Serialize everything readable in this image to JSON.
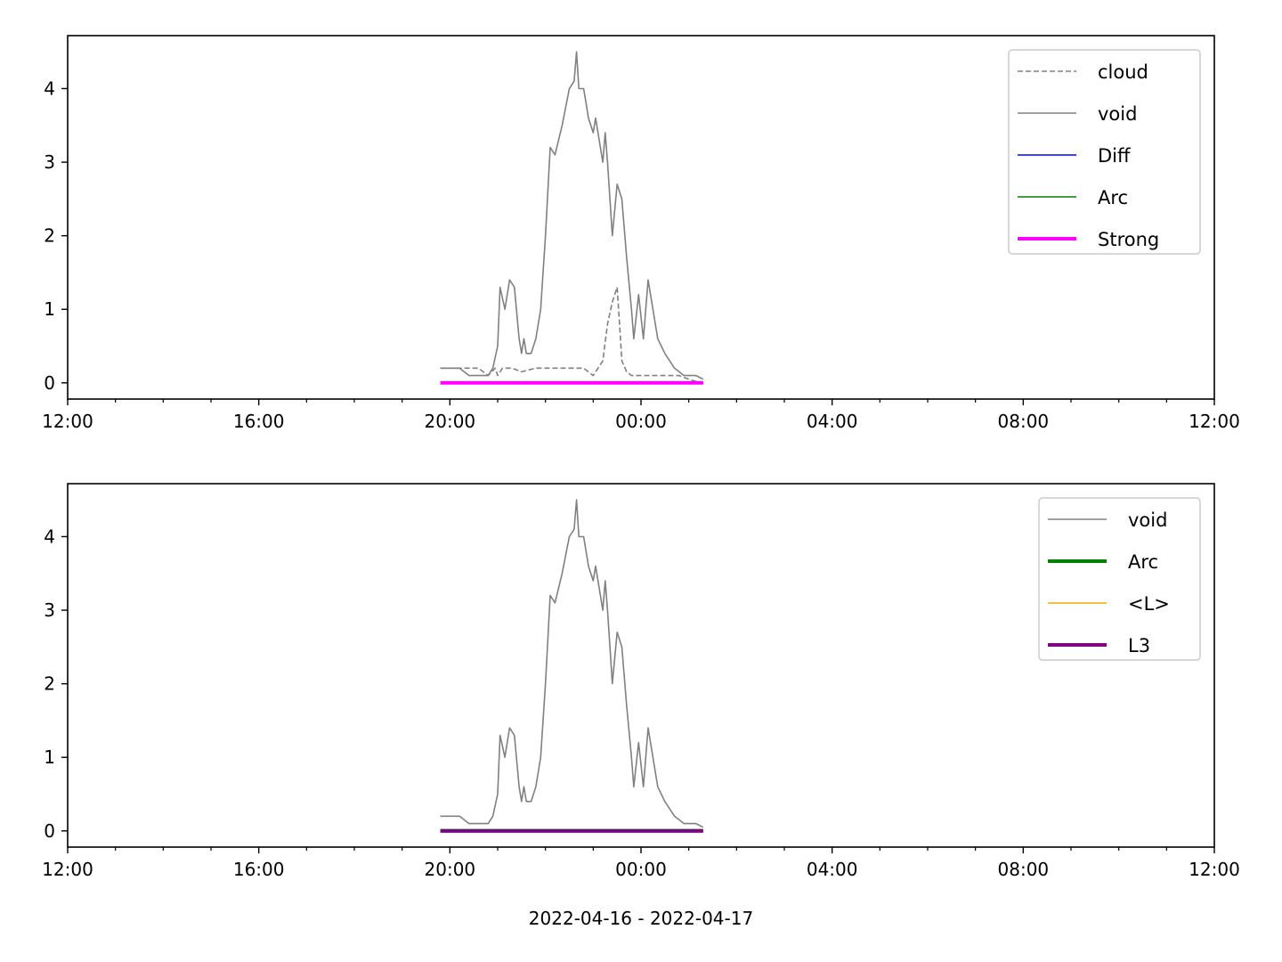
{
  "figure": {
    "xlabel": "2022-04-16 - 2022-04-17"
  },
  "chart_data": [
    {
      "type": "line",
      "x_unit": "hours since 2022-04-16 12:00",
      "xlim": [
        0,
        24
      ],
      "ylim": [
        -0.22,
        4.72
      ],
      "x_ticks": [
        0,
        4,
        8,
        12,
        16,
        20,
        24
      ],
      "x_tick_labels": [
        "12:00",
        "16:00",
        "20:00",
        "00:00",
        "04:00",
        "08:00",
        "12:00"
      ],
      "x_minor_step": 1,
      "y_ticks": [
        0,
        1,
        2,
        3,
        4
      ],
      "y_tick_labels": [
        "0",
        "1",
        "2",
        "3",
        "4"
      ],
      "legend_position": "top-right",
      "series": [
        {
          "name": "cloud",
          "color": "#808080",
          "style": "dashed",
          "width": 1.6,
          "x": [
            7.8,
            8.2,
            8.6,
            8.8,
            8.95,
            9.0,
            9.1,
            9.3,
            9.5,
            9.8,
            10.0,
            10.4,
            10.8,
            11.0,
            11.2,
            11.3,
            11.4,
            11.5,
            11.55,
            11.6,
            11.7,
            11.8,
            11.9,
            12.2,
            12.5,
            12.8,
            13.0,
            13.15,
            13.3
          ],
          "y": [
            0.2,
            0.2,
            0.2,
            0.1,
            0.2,
            0.1,
            0.2,
            0.2,
            0.15,
            0.2,
            0.2,
            0.2,
            0.2,
            0.1,
            0.3,
            0.8,
            1.1,
            1.3,
            0.8,
            0.3,
            0.15,
            0.1,
            0.1,
            0.1,
            0.1,
            0.1,
            0.05,
            0.02,
            0.0
          ]
        },
        {
          "name": "void",
          "color": "#808080",
          "style": "solid",
          "width": 1.6,
          "x": [
            7.8,
            8.0,
            8.2,
            8.4,
            8.6,
            8.8,
            8.9,
            9.0,
            9.05,
            9.15,
            9.25,
            9.35,
            9.45,
            9.5,
            9.55,
            9.6,
            9.7,
            9.8,
            9.9,
            10.0,
            10.1,
            10.2,
            10.35,
            10.5,
            10.6,
            10.65,
            10.7,
            10.8,
            10.9,
            11.0,
            11.05,
            11.1,
            11.2,
            11.25,
            11.3,
            11.4,
            11.5,
            11.6,
            11.7,
            11.8,
            11.85,
            11.95,
            12.05,
            12.15,
            12.25,
            12.35,
            12.5,
            12.6,
            12.7,
            12.8,
            12.9,
            13.0,
            13.15,
            13.3
          ],
          "y": [
            0.2,
            0.2,
            0.2,
            0.1,
            0.1,
            0.1,
            0.2,
            0.5,
            1.3,
            1.0,
            1.4,
            1.3,
            0.6,
            0.4,
            0.6,
            0.4,
            0.4,
            0.6,
            1.0,
            2.0,
            3.2,
            3.1,
            3.5,
            4.0,
            4.1,
            4.5,
            4.0,
            4.0,
            3.6,
            3.4,
            3.6,
            3.4,
            3.0,
            3.4,
            3.0,
            2.0,
            2.7,
            2.5,
            1.7,
            1.0,
            0.6,
            1.2,
            0.6,
            1.4,
            1.0,
            0.6,
            0.4,
            0.3,
            0.2,
            0.15,
            0.1,
            0.1,
            0.1,
            0.05
          ]
        },
        {
          "name": "Diff",
          "color": "#0000ff",
          "style": "solid",
          "width": 1.6,
          "x": [
            7.8,
            13.3
          ],
          "y": [
            0,
            0
          ]
        },
        {
          "name": "Arc",
          "color": "#008000",
          "style": "solid",
          "width": 1.6,
          "x": [
            7.8,
            13.3
          ],
          "y": [
            0,
            0
          ]
        },
        {
          "name": "Strong",
          "color": "#ff00ff",
          "style": "solid",
          "width": 4,
          "x": [
            7.8,
            13.3
          ],
          "y": [
            0,
            0
          ]
        }
      ]
    },
    {
      "type": "line",
      "x_unit": "hours since 2022-04-16 12:00",
      "xlim": [
        0,
        24
      ],
      "ylim": [
        -0.22,
        4.72
      ],
      "x_ticks": [
        0,
        4,
        8,
        12,
        16,
        20,
        24
      ],
      "x_tick_labels": [
        "12:00",
        "16:00",
        "20:00",
        "00:00",
        "04:00",
        "08:00",
        "12:00"
      ],
      "x_minor_step": 1,
      "y_ticks": [
        0,
        1,
        2,
        3,
        4
      ],
      "y_tick_labels": [
        "0",
        "1",
        "2",
        "3",
        "4"
      ],
      "legend_position": "top-right",
      "series": [
        {
          "name": "void",
          "color": "#808080",
          "style": "solid",
          "width": 1.6,
          "x": [
            7.8,
            8.0,
            8.2,
            8.4,
            8.6,
            8.8,
            8.9,
            9.0,
            9.05,
            9.15,
            9.25,
            9.35,
            9.45,
            9.5,
            9.55,
            9.6,
            9.7,
            9.8,
            9.9,
            10.0,
            10.1,
            10.2,
            10.35,
            10.5,
            10.6,
            10.65,
            10.7,
            10.8,
            10.9,
            11.0,
            11.05,
            11.1,
            11.2,
            11.25,
            11.3,
            11.4,
            11.5,
            11.6,
            11.7,
            11.8,
            11.85,
            11.95,
            12.05,
            12.15,
            12.25,
            12.35,
            12.5,
            12.6,
            12.7,
            12.8,
            12.9,
            13.0,
            13.15,
            13.3
          ],
          "y": [
            0.2,
            0.2,
            0.2,
            0.1,
            0.1,
            0.1,
            0.2,
            0.5,
            1.3,
            1.0,
            1.4,
            1.3,
            0.6,
            0.4,
            0.6,
            0.4,
            0.4,
            0.6,
            1.0,
            2.0,
            3.2,
            3.1,
            3.5,
            4.0,
            4.1,
            4.5,
            4.0,
            4.0,
            3.6,
            3.4,
            3.6,
            3.4,
            3.0,
            3.4,
            3.0,
            2.0,
            2.7,
            2.5,
            1.7,
            1.0,
            0.6,
            1.2,
            0.6,
            1.4,
            1.0,
            0.6,
            0.4,
            0.3,
            0.2,
            0.15,
            0.1,
            0.1,
            0.1,
            0.05
          ]
        },
        {
          "name": "Arc",
          "color": "#008000",
          "style": "solid",
          "width": 4,
          "x": [
            7.8,
            13.3
          ],
          "y": [
            0,
            0
          ]
        },
        {
          "name": "<L>",
          "color": "#ffa500",
          "style": "solid",
          "width": 1.6,
          "x": [
            7.8,
            13.3
          ],
          "y": [
            0,
            0
          ]
        },
        {
          "name": "L3",
          "color": "#800080",
          "style": "solid",
          "width": 4,
          "x": [
            7.8,
            13.3
          ],
          "y": [
            0,
            0
          ]
        }
      ]
    }
  ]
}
